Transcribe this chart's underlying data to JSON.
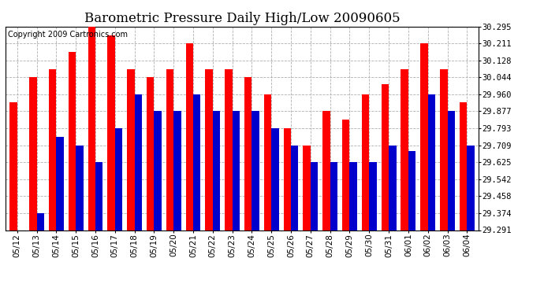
{
  "title": "Barometric Pressure Daily High/Low 20090605",
  "copyright": "Copyright 2009 Cartronics.com",
  "dates": [
    "05/12",
    "05/13",
    "05/14",
    "05/15",
    "05/16",
    "05/17",
    "05/18",
    "05/19",
    "05/20",
    "05/21",
    "05/22",
    "05/23",
    "05/24",
    "05/25",
    "05/26",
    "05/27",
    "05/28",
    "05/29",
    "05/30",
    "05/31",
    "06/01",
    "06/02",
    "06/03",
    "06/04"
  ],
  "highs": [
    29.921,
    30.044,
    30.086,
    30.17,
    30.295,
    30.253,
    30.086,
    30.044,
    30.086,
    30.211,
    30.086,
    30.086,
    30.044,
    29.96,
    29.793,
    29.709,
    29.877,
    29.838,
    29.96,
    30.01,
    30.086,
    30.211,
    30.086,
    29.921
  ],
  "lows": [
    29.291,
    29.374,
    29.75,
    29.709,
    29.626,
    29.793,
    29.96,
    29.877,
    29.877,
    29.96,
    29.877,
    29.877,
    29.877,
    29.793,
    29.709,
    29.625,
    29.625,
    29.625,
    29.625,
    29.709,
    29.68,
    29.96,
    29.877,
    29.709
  ],
  "ymin": 29.291,
  "ymax": 30.295,
  "yticks": [
    29.291,
    29.374,
    29.458,
    29.542,
    29.625,
    29.709,
    29.793,
    29.877,
    29.96,
    30.044,
    30.128,
    30.211,
    30.295
  ],
  "bar_width": 0.38,
  "high_color": "#ff0000",
  "low_color": "#0000cc",
  "bg_color": "#ffffff",
  "grid_color": "#b0b0b0",
  "title_fontsize": 12,
  "tick_fontsize": 7.5,
  "copyright_fontsize": 7
}
